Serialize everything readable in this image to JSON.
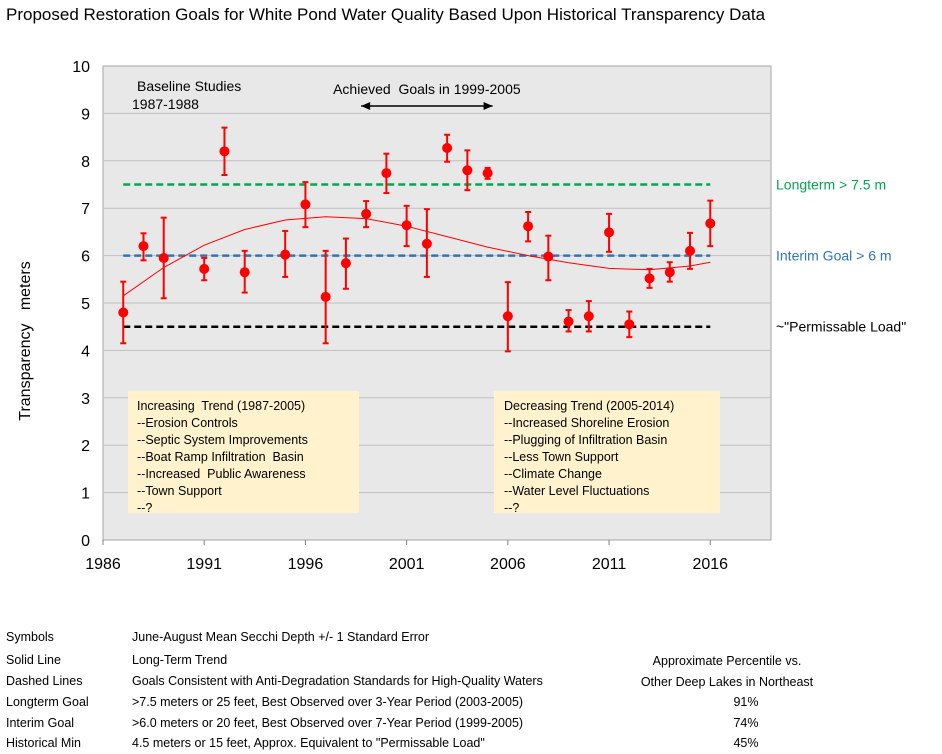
{
  "title": "Proposed Restoration Goals for White Pond Water Quality Based Upon Historical Transparency Data",
  "colors": {
    "plot_bg": "#e8e8e8",
    "grid": "#bfbfbf",
    "points": "#ff0000",
    "trend": "#ff0000",
    "longterm": "#00a650",
    "interim": "#2e75b6",
    "permissable": "#000000",
    "note_bg": "#fff2cc"
  },
  "chart_data": {
    "type": "scatter",
    "xlim": [
      1986,
      2019
    ],
    "ylim": [
      0,
      10
    ],
    "x_ticks": [
      "1986",
      "1991",
      "1996",
      "2001",
      "2006",
      "2011",
      "2016"
    ],
    "y_ticks": [
      "0",
      "1",
      "2",
      "3",
      "4",
      "5",
      "6",
      "7",
      "8",
      "9",
      "10"
    ],
    "ylabel": "Transparency   meters",
    "grid": true,
    "series": [
      {
        "name": "June-August Mean Secchi Depth +/-  1 Standard Error",
        "x": [
          1987,
          1988,
          1989,
          1991,
          1992,
          1993,
          1995,
          1996,
          1997,
          1998,
          1999,
          2000,
          2001,
          2002,
          2003,
          2004,
          2005,
          2006,
          2007,
          2008,
          2009,
          2010,
          2011,
          2012,
          2013,
          2014,
          2015,
          2016
        ],
        "y": [
          4.8,
          6.2,
          5.95,
          5.72,
          8.2,
          5.65,
          6.02,
          7.08,
          5.13,
          5.84,
          6.88,
          7.74,
          6.64,
          6.25,
          8.27,
          7.8,
          7.74,
          4.72,
          6.62,
          5.98,
          4.61,
          4.72,
          6.49,
          4.55,
          5.52,
          5.65,
          6.1,
          6.68
        ],
        "err_low": [
          4.15,
          5.9,
          5.1,
          5.48,
          7.7,
          5.22,
          5.55,
          6.6,
          4.15,
          5.3,
          6.6,
          7.32,
          6.2,
          5.55,
          7.98,
          7.38,
          7.62,
          3.98,
          6.3,
          5.48,
          4.4,
          4.4,
          6.08,
          4.28,
          5.32,
          5.45,
          5.72,
          6.2
        ],
        "err_high": [
          5.45,
          6.47,
          6.8,
          5.95,
          8.7,
          6.1,
          6.52,
          7.55,
          6.1,
          6.36,
          7.15,
          8.15,
          7.05,
          6.98,
          8.55,
          8.22,
          7.85,
          5.44,
          6.92,
          6.42,
          4.85,
          5.04,
          6.88,
          4.82,
          5.72,
          5.86,
          6.48,
          7.16
        ]
      },
      {
        "name": "Long-Term Trend",
        "x": [
          1987,
          1989,
          1991,
          1993,
          1995,
          1997,
          1999,
          2001,
          2003,
          2005,
          2007,
          2009,
          2011,
          2013,
          2015,
          2016
        ],
        "y": [
          5.15,
          5.75,
          6.22,
          6.55,
          6.75,
          6.82,
          6.78,
          6.62,
          6.4,
          6.18,
          6.0,
          5.85,
          5.73,
          5.7,
          5.78,
          5.86
        ]
      }
    ],
    "reference_lines": [
      {
        "value": 7.5,
        "label": "Longterm > 7.5 m",
        "color": "#00a650"
      },
      {
        "value": 6.0,
        "label": "Interim Goal > 6 m",
        "color": "#2e75b6"
      },
      {
        "value": 4.5,
        "label": "~\"Permissable Load\"",
        "color": "#000000"
      }
    ],
    "annotations": {
      "baseline": [
        "Baseline Studies",
        "1987-1988"
      ],
      "achieved": "Achieved  Goals in 1999-2005",
      "achieved_range": [
        1999,
        2005
      ]
    },
    "notes": [
      {
        "lines": [
          "Increasing  Trend (1987-2005)",
          "--Erosion Controls",
          "--Septic System Improvements",
          "--Boat Ramp Infiltration  Basin",
          "--Increased  Public Awareness",
          "--Town Support",
          "--?"
        ]
      },
      {
        "lines": [
          "Decreasing Trend (2005-2014)",
          "--Increased Shoreline Erosion",
          "--Plugging of Infiltration Basin",
          "--Less Town Support",
          "--Climate Change",
          "--Water Level Fluctuations",
          "--?"
        ]
      }
    ]
  },
  "legend_table": {
    "header1": "Approximate Percentile vs.",
    "header2": "Other Deep Lakes in Northeast",
    "rows": [
      {
        "key": "Symbols",
        "desc": "June-August Mean Secchi Depth +/-  1 Standard Error",
        "pct": ""
      },
      {
        "key": "Solid Line",
        "desc": "Long-Term Trend",
        "pct": ""
      },
      {
        "key": "Dashed Lines",
        "desc": "Goals Consistent with Anti-Degradation Standards for High-Quality Waters",
        "pct": ""
      },
      {
        "key": "Longterm Goal",
        "desc": ">7.5 meters or 25 feet,  Best Observed over 3-Year Period (2003-2005)",
        "pct": "91%"
      },
      {
        "key": "Interim Goal",
        "desc": ">6.0 meters or 20 feet,  Best Observed over 7-Year Period (1999-2005)",
        "pct": "74%"
      },
      {
        "key": "Historical Min",
        "desc": "4.5 meters or 15 feet, Approx. Equivalent to \"Permissable Load\"",
        "pct": "45%"
      }
    ]
  }
}
